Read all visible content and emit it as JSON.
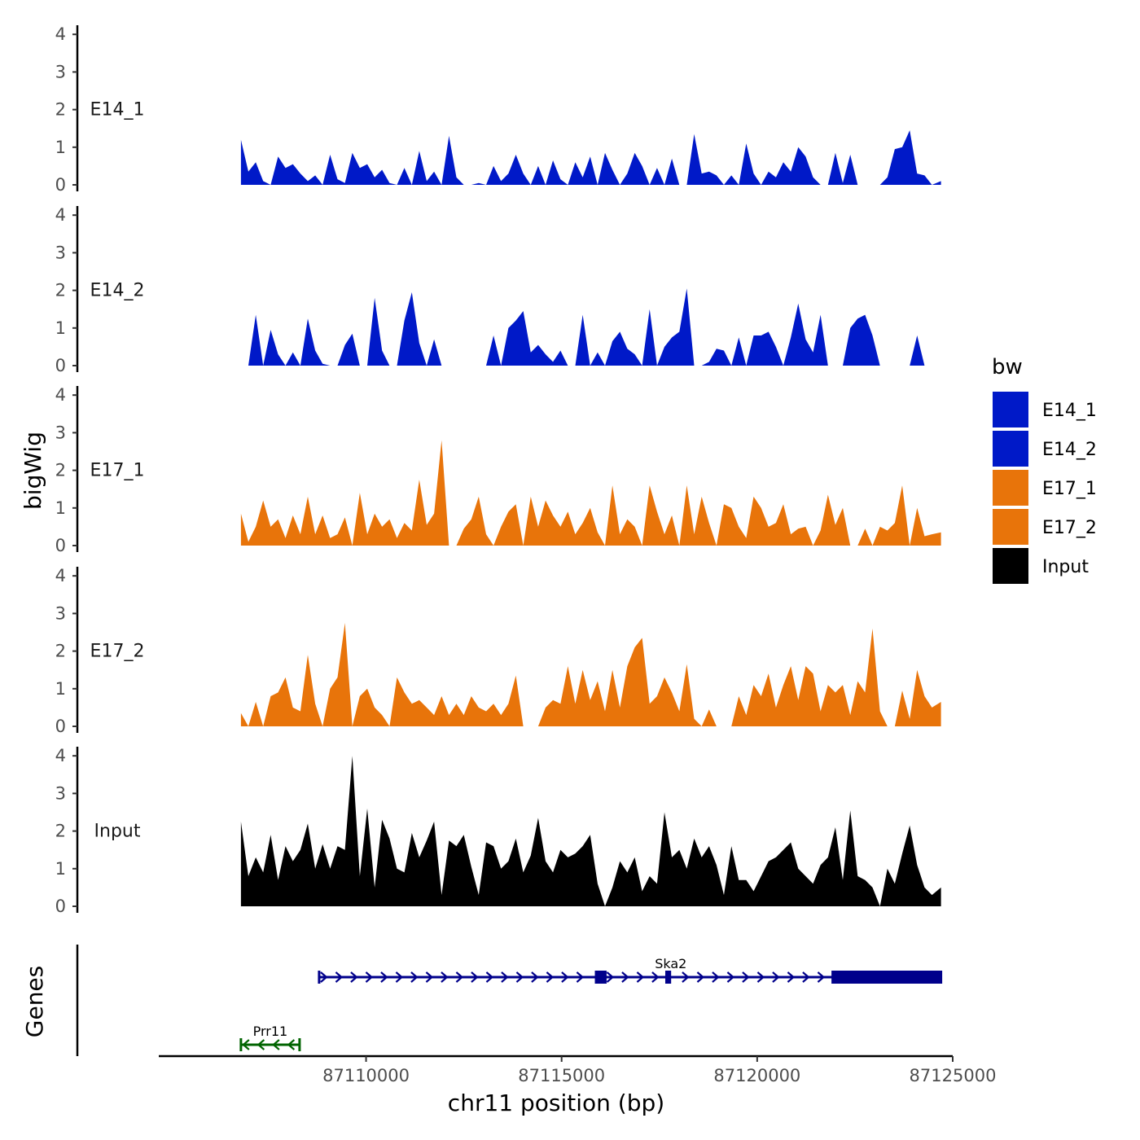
{
  "chart_data": {
    "type": "area",
    "region": {
      "chromosome": "chr11",
      "start": 87106800,
      "end": 87124700
    },
    "y_axis": {
      "title": "bigWig",
      "ticks": [
        0,
        1,
        2,
        3,
        4
      ],
      "ylim": [
        0,
        4.2
      ]
    },
    "x_axis": {
      "title": "chr11 position (bp)",
      "ticks": [
        87110000,
        87115000,
        87120000,
        87125000
      ],
      "xlim": [
        87104700,
        87125000
      ]
    },
    "tracks": [
      {
        "name": "E14_1",
        "color": "#0019C8",
        "x": [
          87106800,
          87106990,
          87107180,
          87107370,
          87107560,
          87107750,
          87107940,
          87108130,
          87108320,
          87108510,
          87108700,
          87108890,
          87109080,
          87109270,
          87109460,
          87109650,
          87109840,
          87110030,
          87110220,
          87110410,
          87110600,
          87110790,
          87110980,
          87111170,
          87111360,
          87111550,
          87111740,
          87111930,
          87112120,
          87112310,
          87112500,
          87112690,
          87112880,
          87113070,
          87113260,
          87113450,
          87113640,
          87113830,
          87114020,
          87114210,
          87114400,
          87114590,
          87114780,
          87114970,
          87115160,
          87115350,
          87115540,
          87115730,
          87115920,
          87116110,
          87116300,
          87116490,
          87116680,
          87116870,
          87117060,
          87117250,
          87117440,
          87117630,
          87117820,
          87118010,
          87118200,
          87118390,
          87118580,
          87118770,
          87118960,
          87119150,
          87119340,
          87119530,
          87119720,
          87119910,
          87120100,
          87120290,
          87120480,
          87120670,
          87120860,
          87121050,
          87121240,
          87121430,
          87121620,
          87121810,
          87122000,
          87122190,
          87122380,
          87122570,
          87122760,
          87122950,
          87123140,
          87123330,
          87123520,
          87123710,
          87123900,
          87124090,
          87124280,
          87124470,
          87124700
        ],
        "values": [
          1.2,
          0.35,
          0.6,
          0.1,
          0.0,
          0.75,
          0.45,
          0.55,
          0.3,
          0.1,
          0.25,
          0.0,
          0.8,
          0.15,
          0.05,
          0.85,
          0.45,
          0.55,
          0.2,
          0.4,
          0.05,
          0.0,
          0.45,
          0.0,
          0.9,
          0.1,
          0.35,
          0.0,
          1.3,
          0.2,
          0.0,
          0.0,
          0.05,
          0.0,
          0.5,
          0.1,
          0.3,
          0.8,
          0.3,
          0.0,
          0.5,
          0.0,
          0.65,
          0.15,
          0.0,
          0.6,
          0.2,
          0.75,
          0.0,
          0.85,
          0.4,
          0.0,
          0.3,
          0.85,
          0.5,
          0.0,
          0.45,
          0.0,
          0.7,
          0.0,
          0.0,
          1.35,
          0.3,
          0.35,
          0.25,
          0.0,
          0.25,
          0.0,
          1.1,
          0.3,
          0.0,
          0.35,
          0.2,
          0.6,
          0.35,
          1.0,
          0.75,
          0.2,
          0.0,
          0.0,
          0.85,
          0.05,
          0.8,
          0.0,
          0.0,
          0.0,
          0.0,
          0.2,
          0.95,
          1.0,
          1.45,
          0.3,
          0.25,
          0.0,
          0.1
        ]
      },
      {
        "name": "E14_2",
        "color": "#0019C8",
        "x": [
          87106800,
          87106990,
          87107180,
          87107370,
          87107560,
          87107750,
          87107940,
          87108130,
          87108320,
          87108510,
          87108700,
          87108890,
          87109080,
          87109270,
          87109460,
          87109650,
          87109840,
          87110030,
          87110220,
          87110410,
          87110600,
          87110790,
          87110980,
          87111170,
          87111360,
          87111550,
          87111740,
          87111930,
          87112120,
          87112310,
          87112500,
          87112690,
          87112880,
          87113070,
          87113260,
          87113450,
          87113640,
          87113830,
          87114020,
          87114210,
          87114400,
          87114590,
          87114780,
          87114970,
          87115160,
          87115350,
          87115540,
          87115730,
          87115920,
          87116110,
          87116300,
          87116490,
          87116680,
          87116870,
          87117060,
          87117250,
          87117440,
          87117630,
          87117820,
          87118010,
          87118200,
          87118390,
          87118580,
          87118770,
          87118960,
          87119150,
          87119340,
          87119530,
          87119720,
          87119910,
          87120100,
          87120290,
          87120480,
          87120670,
          87120860,
          87121050,
          87121240,
          87121430,
          87121620,
          87121810,
          87122000,
          87122190,
          87122380,
          87122570,
          87122760,
          87122950,
          87123140,
          87123330,
          87123520,
          87123710,
          87123900,
          87124090,
          87124280,
          87124470,
          87124700
        ],
        "values": [
          0.0,
          0.0,
          1.35,
          0.0,
          0.95,
          0.3,
          0.0,
          0.35,
          0.0,
          1.25,
          0.4,
          0.05,
          0.0,
          0.0,
          0.55,
          0.85,
          0.0,
          0.0,
          1.8,
          0.4,
          0.0,
          0.0,
          1.2,
          1.95,
          0.6,
          0.0,
          0.7,
          0.0,
          0.0,
          0.0,
          0.0,
          0.0,
          0.0,
          0.0,
          0.8,
          0.0,
          1.0,
          1.2,
          1.45,
          0.35,
          0.55,
          0.3,
          0.1,
          0.4,
          0.0,
          0.0,
          1.35,
          0.0,
          0.35,
          0.0,
          0.65,
          0.9,
          0.45,
          0.3,
          0.0,
          1.5,
          0.0,
          0.5,
          0.75,
          0.9,
          2.05,
          0.0,
          0.0,
          0.1,
          0.45,
          0.4,
          0.0,
          0.75,
          0.0,
          0.8,
          0.8,
          0.9,
          0.5,
          0.0,
          0.75,
          1.65,
          0.7,
          0.35,
          1.35,
          0.0,
          0.0,
          0.0,
          1.0,
          1.25,
          1.35,
          0.8,
          0.0,
          0.0,
          0.0,
          0.0,
          0.0,
          0.8,
          0.0,
          0.0,
          0.0
        ]
      },
      {
        "name": "E17_1",
        "color": "#E8740A",
        "x": [
          87106800,
          87106990,
          87107180,
          87107370,
          87107560,
          87107750,
          87107940,
          87108130,
          87108320,
          87108510,
          87108700,
          87108890,
          87109080,
          87109270,
          87109460,
          87109650,
          87109840,
          87110030,
          87110220,
          87110410,
          87110600,
          87110790,
          87110980,
          87111170,
          87111360,
          87111550,
          87111740,
          87111930,
          87112120,
          87112310,
          87112500,
          87112690,
          87112880,
          87113070,
          87113260,
          87113450,
          87113640,
          87113830,
          87114020,
          87114210,
          87114400,
          87114590,
          87114780,
          87114970,
          87115160,
          87115350,
          87115540,
          87115730,
          87115920,
          87116110,
          87116300,
          87116490,
          87116680,
          87116870,
          87117060,
          87117250,
          87117440,
          87117630,
          87117820,
          87118010,
          87118200,
          87118390,
          87118580,
          87118770,
          87118960,
          87119150,
          87119340,
          87119530,
          87119720,
          87119910,
          87120100,
          87120290,
          87120480,
          87120670,
          87120860,
          87121050,
          87121240,
          87121430,
          87121620,
          87121810,
          87122000,
          87122190,
          87122380,
          87122570,
          87122760,
          87122950,
          87123140,
          87123330,
          87123520,
          87123710,
          87123900,
          87124090,
          87124280,
          87124470,
          87124700
        ],
        "values": [
          0.85,
          0.1,
          0.5,
          1.2,
          0.5,
          0.7,
          0.2,
          0.8,
          0.3,
          1.3,
          0.3,
          0.8,
          0.2,
          0.3,
          0.75,
          0.0,
          1.4,
          0.3,
          0.85,
          0.5,
          0.7,
          0.2,
          0.6,
          0.4,
          1.75,
          0.55,
          0.85,
          2.8,
          0.0,
          0.0,
          0.45,
          0.7,
          1.3,
          0.3,
          0.0,
          0.5,
          0.9,
          1.1,
          0.0,
          1.3,
          0.5,
          1.2,
          0.8,
          0.5,
          0.9,
          0.3,
          0.6,
          1.0,
          0.35,
          0.0,
          1.6,
          0.3,
          0.7,
          0.5,
          0.0,
          1.6,
          0.9,
          0.3,
          0.8,
          0.0,
          1.6,
          0.3,
          1.3,
          0.6,
          0.0,
          1.1,
          1.0,
          0.5,
          0.2,
          1.3,
          1.0,
          0.5,
          0.6,
          1.1,
          0.3,
          0.45,
          0.5,
          0.0,
          0.4,
          1.35,
          0.55,
          1.0,
          0.0,
          0.0,
          0.45,
          0.0,
          0.5,
          0.4,
          0.6,
          1.6,
          0.0,
          1.0,
          0.25,
          0.3,
          0.35
        ]
      },
      {
        "name": "E17_2",
        "color": "#E8740A",
        "x": [
          87106800,
          87106990,
          87107180,
          87107370,
          87107560,
          87107750,
          87107940,
          87108130,
          87108320,
          87108510,
          87108700,
          87108890,
          87109080,
          87109270,
          87109460,
          87109650,
          87109840,
          87110030,
          87110220,
          87110410,
          87110600,
          87110790,
          87110980,
          87111170,
          87111360,
          87111550,
          87111740,
          87111930,
          87112120,
          87112310,
          87112500,
          87112690,
          87112880,
          87113070,
          87113260,
          87113450,
          87113640,
          87113830,
          87114020,
          87114210,
          87114400,
          87114590,
          87114780,
          87114970,
          87115160,
          87115350,
          87115540,
          87115730,
          87115920,
          87116110,
          87116300,
          87116490,
          87116680,
          87116870,
          87117060,
          87117250,
          87117440,
          87117630,
          87117820,
          87118010,
          87118200,
          87118390,
          87118580,
          87118770,
          87118960,
          87119150,
          87119340,
          87119530,
          87119720,
          87119910,
          87120100,
          87120290,
          87120480,
          87120670,
          87120860,
          87121050,
          87121240,
          87121430,
          87121620,
          87121810,
          87122000,
          87122190,
          87122380,
          87122570,
          87122760,
          87122950,
          87123140,
          87123330,
          87123520,
          87123710,
          87123900,
          87124090,
          87124280,
          87124470,
          87124700
        ],
        "values": [
          0.35,
          0.0,
          0.65,
          0.0,
          0.8,
          0.9,
          1.3,
          0.5,
          0.4,
          1.9,
          0.6,
          0.0,
          1.0,
          1.3,
          2.75,
          0.0,
          0.8,
          1.0,
          0.5,
          0.3,
          0.0,
          1.3,
          0.9,
          0.6,
          0.7,
          0.5,
          0.3,
          0.8,
          0.3,
          0.6,
          0.3,
          0.8,
          0.5,
          0.4,
          0.6,
          0.3,
          0.6,
          1.35,
          0.0,
          0.0,
          0.0,
          0.5,
          0.7,
          0.6,
          1.6,
          0.6,
          1.5,
          0.7,
          1.2,
          0.4,
          1.5,
          0.5,
          1.6,
          2.1,
          2.35,
          0.6,
          0.8,
          1.3,
          0.9,
          0.4,
          1.65,
          0.2,
          0.0,
          0.45,
          0.0,
          0.0,
          0.0,
          0.8,
          0.3,
          1.1,
          0.8,
          1.4,
          0.5,
          1.1,
          1.6,
          0.7,
          1.6,
          1.4,
          0.4,
          1.1,
          0.9,
          1.1,
          0.3,
          1.2,
          0.9,
          2.6,
          0.4,
          0.0,
          0.0,
          0.95,
          0.2,
          1.5,
          0.8,
          0.5,
          0.65
        ]
      },
      {
        "name": "Input",
        "color": "#000000",
        "x": [
          87106800,
          87106990,
          87107180,
          87107370,
          87107560,
          87107750,
          87107940,
          87108130,
          87108320,
          87108510,
          87108700,
          87108890,
          87109080,
          87109270,
          87109460,
          87109650,
          87109840,
          87110030,
          87110220,
          87110410,
          87110600,
          87110790,
          87110980,
          87111170,
          87111360,
          87111550,
          87111740,
          87111930,
          87112120,
          87112310,
          87112500,
          87112690,
          87112880,
          87113070,
          87113260,
          87113450,
          87113640,
          87113830,
          87114020,
          87114210,
          87114400,
          87114590,
          87114780,
          87114970,
          87115160,
          87115350,
          87115540,
          87115730,
          87115920,
          87116110,
          87116300,
          87116490,
          87116680,
          87116870,
          87117060,
          87117250,
          87117440,
          87117630,
          87117820,
          87118010,
          87118200,
          87118390,
          87118580,
          87118770,
          87118960,
          87119150,
          87119340,
          87119530,
          87119720,
          87119910,
          87120100,
          87120290,
          87120480,
          87120670,
          87120860,
          87121050,
          87121240,
          87121430,
          87121620,
          87121810,
          87122000,
          87122190,
          87122380,
          87122570,
          87122760,
          87122950,
          87123140,
          87123330,
          87123520,
          87123710,
          87123900,
          87124090,
          87124280,
          87124470,
          87124700
        ],
        "values": [
          2.25,
          0.8,
          1.3,
          0.9,
          1.9,
          0.7,
          1.6,
          1.2,
          1.5,
          2.2,
          1.0,
          1.65,
          1.0,
          1.6,
          1.5,
          4.0,
          0.8,
          2.6,
          0.5,
          2.3,
          1.8,
          1.0,
          0.9,
          1.95,
          1.3,
          1.75,
          2.25,
          0.3,
          1.75,
          1.6,
          1.9,
          1.05,
          0.3,
          1.7,
          1.6,
          1.0,
          1.2,
          1.8,
          0.9,
          1.35,
          2.35,
          1.2,
          0.9,
          1.5,
          1.3,
          1.4,
          1.6,
          1.9,
          0.6,
          0.0,
          0.5,
          1.2,
          0.9,
          1.3,
          0.4,
          0.8,
          0.6,
          2.5,
          1.3,
          1.5,
          1.0,
          1.8,
          1.3,
          1.6,
          1.1,
          0.3,
          1.6,
          0.7,
          0.7,
          0.4,
          0.8,
          1.2,
          1.3,
          1.5,
          1.7,
          1.0,
          0.8,
          0.6,
          1.1,
          1.3,
          2.1,
          0.7,
          2.55,
          0.8,
          0.7,
          0.5,
          0.0,
          1.0,
          0.6,
          1.4,
          2.15,
          1.1,
          0.5,
          0.3,
          0.5
        ]
      }
    ],
    "genes": [
      {
        "name": "Prr11",
        "start": 87106800,
        "end": 87108300,
        "strand": "-",
        "color": "#006400",
        "exons": []
      },
      {
        "name": "Ska2",
        "start": 87108800,
        "end": 87124700,
        "strand": "+",
        "color": "#00008B",
        "exons": [
          [
            87115850,
            87116150
          ],
          [
            87117650,
            87117800
          ],
          [
            87121900,
            87124700
          ]
        ]
      }
    ],
    "genes_axis_title": "Genes",
    "legend": {
      "title": "bw",
      "entries": [
        {
          "label": "E14_1",
          "color": "#0019C8"
        },
        {
          "label": "E14_2",
          "color": "#0019C8"
        },
        {
          "label": "E17_1",
          "color": "#E8740A"
        },
        {
          "label": "E17_2",
          "color": "#E8740A"
        },
        {
          "label": "Input",
          "color": "#000000"
        }
      ]
    }
  }
}
